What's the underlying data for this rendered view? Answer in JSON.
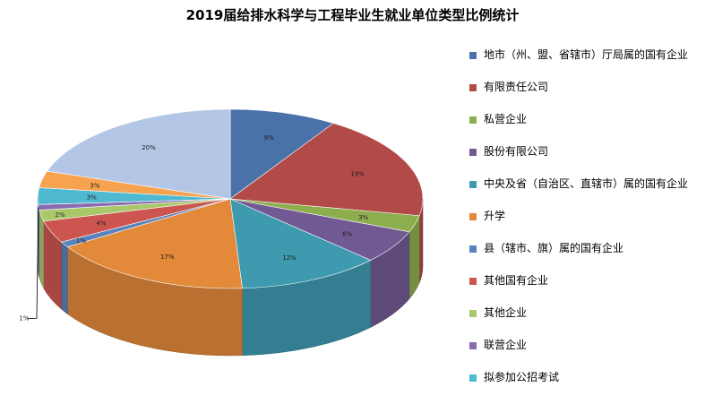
{
  "chart_data": {
    "type": "pie",
    "title": "2019届给排水科学与工程毕业生就业单位类型比例统计",
    "legend_position": "right",
    "style": "3d",
    "series": [
      {
        "name": "地市（州、盟、省辖市）厅局属的国有企业",
        "value": 9,
        "label": "9%",
        "color": "#4a72a8"
      },
      {
        "name": "有限责任公司",
        "value": 19,
        "label": "19%",
        "color": "#b24a48"
      },
      {
        "name": "私营企业",
        "value": 3,
        "label": "3%",
        "color": "#8dae4f"
      },
      {
        "name": "股份有限公司",
        "value": 6,
        "label": "6%",
        "color": "#715a94"
      },
      {
        "name": "中央及省（自治区、直辖市）属的国有企业",
        "value": 12,
        "label": "12%",
        "color": "#3e9aaf"
      },
      {
        "name": "升学",
        "value": 17,
        "label": "17%",
        "color": "#e2893a"
      },
      {
        "name": "县（辖市、旗）属的国有企业",
        "value": 1,
        "label": "1%",
        "color": "#5a82bd"
      },
      {
        "name": "其他国有企业",
        "value": 4,
        "label": "4%",
        "color": "#cc5550"
      },
      {
        "name": "其他企业",
        "value": 2,
        "label": "2%",
        "color": "#a9c86a"
      },
      {
        "name": "联营企业",
        "value": 1,
        "label": "1%",
        "color": "#8a6bb0"
      },
      {
        "name": "拟参加公招考试",
        "value": 3,
        "label": "3%",
        "color": "#4fb9d1"
      },
      {
        "name": "",
        "value": 3,
        "label": "3%",
        "color": "#f6a24f"
      },
      {
        "name": "",
        "value": 20,
        "label": "20%",
        "color": "#b4c6e6"
      }
    ]
  }
}
